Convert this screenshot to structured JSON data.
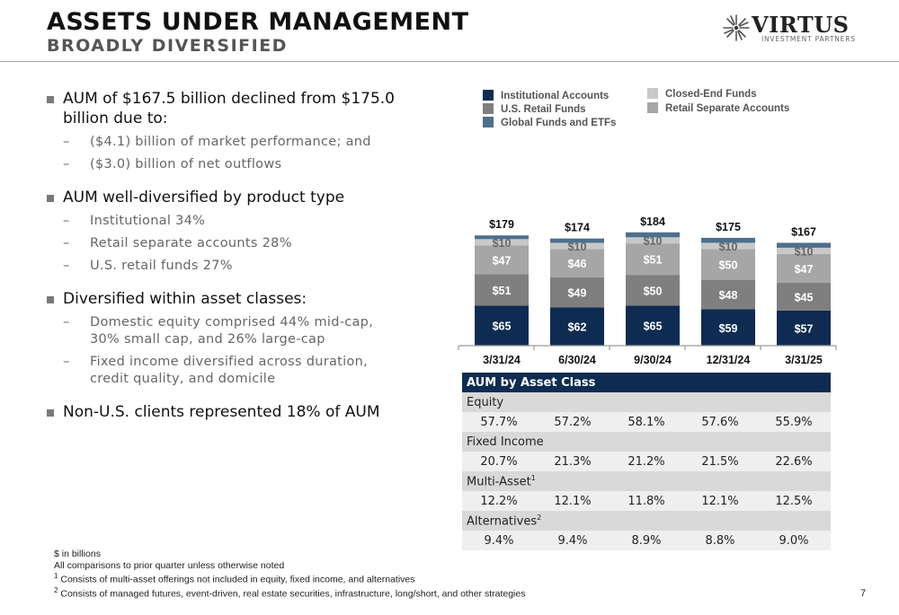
{
  "header": {
    "title": "ASSETS UNDER MANAGEMENT",
    "subtitle": "BROADLY DIVERSIFIED",
    "logo_name": "VIRTUS",
    "logo_sub": "INVESTMENT PARTNERS"
  },
  "bullets": [
    {
      "text": "AUM of $167.5 billion declined from $175.0 billion due to:",
      "subs": [
        "($4.1) billion of market performance; and",
        "($3.0) billion of net outflows"
      ]
    },
    {
      "text": "AUM well-diversified by product type",
      "subs": [
        "Institutional 34%",
        "Retail separate accounts 28%",
        "U.S. retail funds 27%"
      ]
    },
    {
      "text": "Diversified within asset classes:",
      "subs": [
        "Domestic equity comprised 44% mid-cap, 30% small cap, and 26% large-cap",
        "Fixed income diversified across duration, credit quality, and domicile"
      ]
    },
    {
      "text": "Non-U.S. clients represented 18% of AUM",
      "subs": []
    }
  ],
  "colors": {
    "institutional": "#0e2c52",
    "us_retail": "#7f7f7f",
    "retail_separate": "#a6a6a6",
    "closed_end": "#c8c8c8",
    "global": "#4e6f8c"
  },
  "chart_data": {
    "type": "bar",
    "stacked": true,
    "categories": [
      "3/31/24",
      "6/30/24",
      "9/30/24",
      "12/31/24",
      "3/31/25"
    ],
    "totals": [
      "$179",
      "$174",
      "$184",
      "$175",
      "$167"
    ],
    "series": [
      {
        "name": "Institutional Accounts",
        "key": "institutional",
        "values": [
          65,
          62,
          65,
          59,
          57
        ],
        "labels": [
          "$65",
          "$62",
          "$65",
          "$59",
          "$57"
        ]
      },
      {
        "name": "U.S. Retail Funds",
        "key": "us_retail",
        "values": [
          51,
          49,
          50,
          48,
          45
        ],
        "labels": [
          "$51",
          "$49",
          "$50",
          "$48",
          "$45"
        ]
      },
      {
        "name": "Retail Separate Accounts",
        "key": "retail_separate",
        "values": [
          47,
          46,
          51,
          50,
          47
        ],
        "labels": [
          "$47",
          "$46",
          "$51",
          "$50",
          "$47"
        ]
      },
      {
        "name": "Closed-End Funds",
        "key": "closed_end",
        "values": [
          10,
          10,
          10,
          10,
          10
        ],
        "labels": [
          "$10",
          "$10",
          "$10",
          "$10",
          "$10"
        ]
      },
      {
        "name": "Global Funds and ETFs",
        "key": "global",
        "values": [
          6,
          7,
          8,
          8,
          8
        ],
        "labels": [
          "",
          "",
          "",
          "",
          ""
        ]
      }
    ],
    "legend": {
      "col1": [
        "Institutional Accounts",
        "U.S. Retail Funds",
        "Global Funds and ETFs"
      ],
      "col1_keys": [
        "institutional",
        "us_retail",
        "global"
      ],
      "col2": [
        "Closed-End Funds",
        "Retail Separate Accounts"
      ],
      "col2_keys": [
        "closed_end",
        "retail_separate"
      ]
    }
  },
  "table": {
    "title": "AUM by Asset Class",
    "rows": [
      {
        "label": "Equity",
        "sup": "",
        "values": [
          "57.7%",
          "57.2%",
          "58.1%",
          "57.6%",
          "55.9%"
        ]
      },
      {
        "label": "Fixed Income",
        "sup": "",
        "values": [
          "20.7%",
          "21.3%",
          "21.2%",
          "21.5%",
          "22.6%"
        ]
      },
      {
        "label": "Multi-Asset",
        "sup": "1",
        "values": [
          "12.2%",
          "12.1%",
          "11.8%",
          "12.1%",
          "12.5%"
        ]
      },
      {
        "label": "Alternatives",
        "sup": "2",
        "values": [
          "9.4%",
          "9.4%",
          "8.9%",
          "8.8%",
          "9.0%"
        ]
      }
    ]
  },
  "footnotes": {
    "line1": "$ in billions",
    "line2": "All comparisons to prior quarter unless otherwise noted",
    "line3_sup": "1",
    "line3": "Consists of multi-asset offerings not included in equity, fixed income, and alternatives",
    "line4_sup": "2",
    "line4": "Consists of managed futures, event-driven, real estate securities, infrastructure, long/short, and other strategies"
  },
  "page_number": "7"
}
